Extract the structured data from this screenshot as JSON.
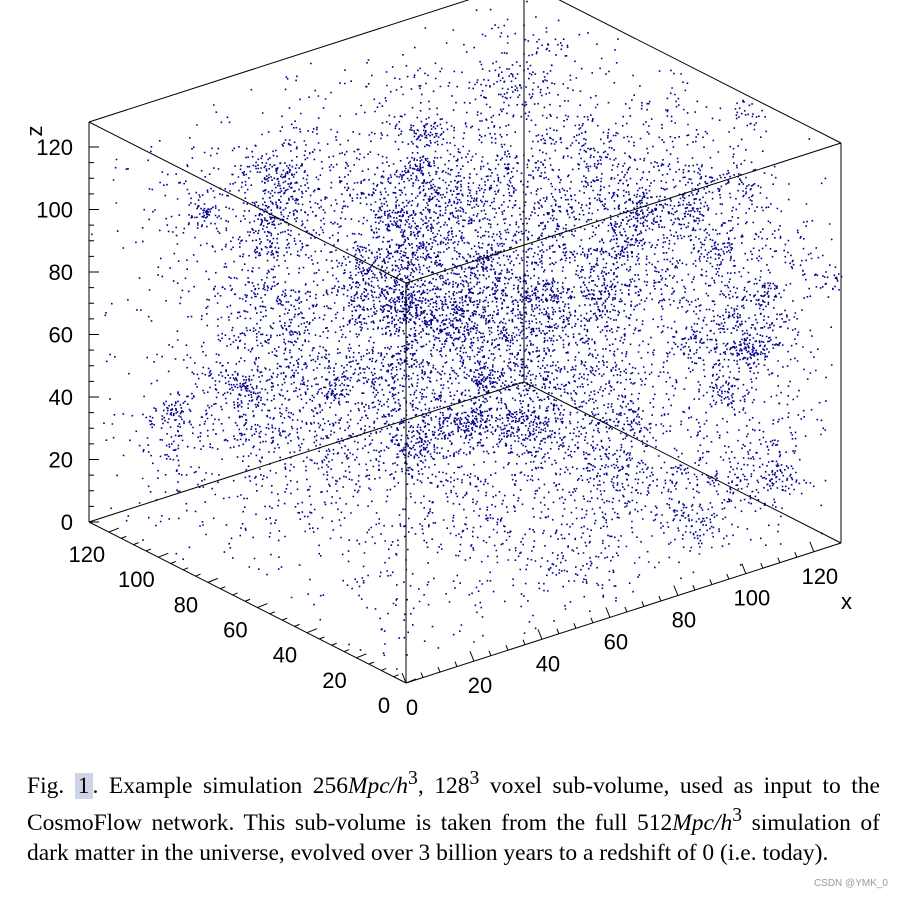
{
  "chart_data": {
    "type": "scatter",
    "variant": "3d-point-cloud",
    "title": "",
    "point_color": "#00008b",
    "point_count_estimate": 12000,
    "x_axis": {
      "label": "x",
      "range": [
        0,
        128
      ],
      "ticks": [
        "0",
        "20",
        "40",
        "60",
        "80",
        "100",
        "120"
      ]
    },
    "y_axis": {
      "label": "",
      "range": [
        0,
        128
      ],
      "ticks": [
        "0",
        "20",
        "40",
        "60",
        "80",
        "100",
        "120"
      ]
    },
    "z_axis": {
      "label": "z",
      "range": [
        0,
        128
      ],
      "ticks": [
        "0",
        "20",
        "40",
        "60",
        "80",
        "100",
        "120"
      ]
    }
  },
  "caption": {
    "fig_label": "Fig.",
    "fig_number": "1",
    "text_1": ".  Example simulation 256",
    "math_1": "Mpc/h",
    "sup_1": "3",
    "text_2": ", 128",
    "sup_2": "3",
    "text_3": " voxel sub-volume, used as input to the CosmoFlow network. This sub-volume is taken from the full 512",
    "math_2": "Mpc/h",
    "sup_3": "3",
    "text_4": " simulation of dark matter in the universe, evolved over 3 billion years to a redshift of 0 (i.e. today)."
  },
  "watermark": "CSDN @YMK_0"
}
